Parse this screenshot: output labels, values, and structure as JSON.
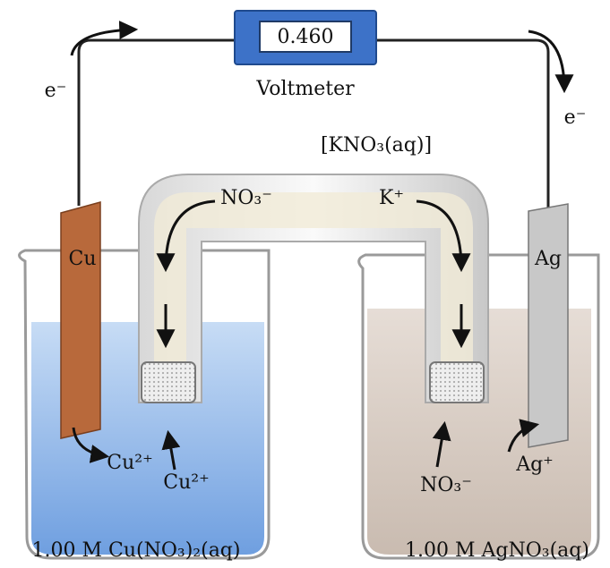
{
  "voltmeter": {
    "reading": "0.460",
    "label": "Voltmeter"
  },
  "electron_flow": {
    "left": "e⁻",
    "right": "e⁻"
  },
  "salt_bridge": {
    "label": "[KNO₃(aq)]",
    "anion": "NO₃⁻",
    "cation": "K⁺"
  },
  "anode": {
    "electrode": "Cu",
    "ions": [
      "Cu²⁺",
      "Cu²⁺"
    ],
    "solution": "1.00 M Cu(NO₃)₂(aq)"
  },
  "cathode": {
    "electrode": "Ag",
    "ions": [
      "Ag⁺",
      "NO₃⁻"
    ],
    "solution": "1.00 M AgNO₃(aq)"
  }
}
